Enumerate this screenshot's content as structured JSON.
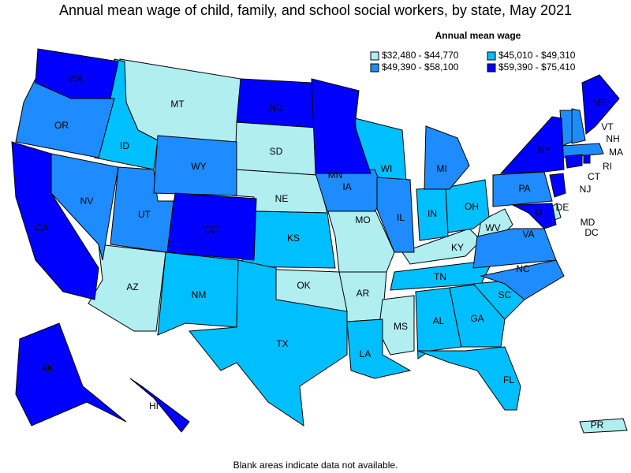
{
  "title": "Annual mean wage of child, family, and school social workers, by state, May 2021",
  "legend": {
    "title": "Annual mean wage",
    "bins": [
      {
        "label": "$32,480 - $44,770",
        "color": "#b0eef0",
        "states": [
          "MT",
          "SD",
          "NE",
          "MO",
          "AR",
          "OK",
          "AZ",
          "MS",
          "KY",
          "WV",
          "DE",
          "PR"
        ]
      },
      {
        "label": "$45,010 - $49,310",
        "color": "#00bfff",
        "states": [
          "ID",
          "KS",
          "NM",
          "TX",
          "WI",
          "IN",
          "OH",
          "TN",
          "AL",
          "GA",
          "SC",
          "FL",
          "LA"
        ]
      },
      {
        "label": "$49,390 - $58,100",
        "color": "#1e8cff",
        "states": [
          "OR",
          "NV",
          "UT",
          "WY",
          "IA",
          "IL",
          "MI",
          "PA",
          "VA",
          "NC",
          "VT",
          "NH",
          "MA"
        ]
      },
      {
        "label": "$59,390 - $75,410",
        "color": "#0000ff",
        "states": [
          "WA",
          "CA",
          "CO",
          "ND",
          "MN",
          "NY",
          "NJ",
          "MD",
          "CT",
          "RI",
          "ME",
          "AK",
          "HI",
          "DC"
        ]
      }
    ]
  },
  "footnote": "Blank areas indicate data not available."
}
